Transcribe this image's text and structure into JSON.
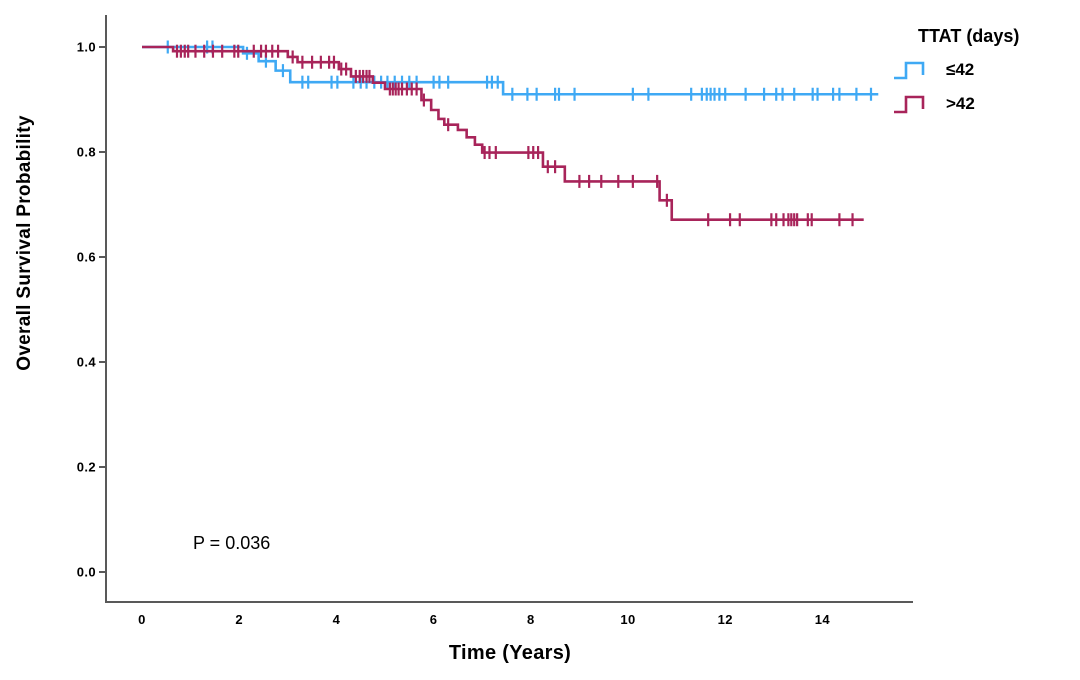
{
  "chart_data": {
    "type": "line",
    "subtype": "kaplan-meier-step",
    "title": "",
    "xlabel": "Time (Years)",
    "ylabel": "Overall Survival Probability",
    "annotation": "P = 0.036",
    "x_ticks": [
      "0",
      "2",
      "4",
      "6",
      "8",
      "10",
      "12",
      "14"
    ],
    "y_ticks": [
      "1.0",
      "0.8",
      "0.6",
      "0.4",
      "0.2",
      "0.0"
    ],
    "xlim": [
      -0.75,
      15.9
    ],
    "ylim": [
      -0.06,
      1.06
    ],
    "grid": false,
    "axis_color": "#595959",
    "text_color": "#000000",
    "legend": {
      "title": "TTAT (days)",
      "position": "top-right",
      "entries": [
        "≤42",
        ">42"
      ]
    },
    "series": [
      {
        "id": "ttat-le-42",
        "name": "≤42",
        "color": "#3FA9F4",
        "steps": [
          [
            0,
            1.0
          ],
          [
            2.08,
            1.0
          ],
          [
            2.08,
            0.988
          ],
          [
            2.4,
            0.988
          ],
          [
            2.4,
            0.973
          ],
          [
            2.75,
            0.973
          ],
          [
            2.75,
            0.955
          ],
          [
            3.05,
            0.955
          ],
          [
            3.05,
            0.933
          ],
          [
            7.43,
            0.933
          ],
          [
            7.43,
            0.91
          ],
          [
            15.15,
            0.91
          ]
        ],
        "censors": [
          0.53,
          1.34,
          1.45,
          2.16,
          2.55,
          2.9,
          3.3,
          3.42,
          3.9,
          4.02,
          4.35,
          4.5,
          4.62,
          4.78,
          4.92,
          5.05,
          5.2,
          5.35,
          5.5,
          5.65,
          6.0,
          6.12,
          6.3,
          7.1,
          7.2,
          7.32,
          7.62,
          7.93,
          8.12,
          8.5,
          8.58,
          8.9,
          10.1,
          10.42,
          11.3,
          11.52,
          11.62,
          11.7,
          11.78,
          11.88,
          12.0,
          12.42,
          12.8,
          13.05,
          13.18,
          13.42,
          13.8,
          13.9,
          14.22,
          14.35,
          14.7,
          15.0
        ]
      },
      {
        "id": "ttat-gt-42",
        "name": ">42",
        "color": "#A8245A",
        "steps": [
          [
            0,
            1.0
          ],
          [
            0.64,
            1.0
          ],
          [
            0.64,
            0.992
          ],
          [
            3.0,
            0.992
          ],
          [
            3.0,
            0.981
          ],
          [
            3.2,
            0.981
          ],
          [
            3.2,
            0.971
          ],
          [
            4.05,
            0.971
          ],
          [
            4.05,
            0.958
          ],
          [
            4.3,
            0.958
          ],
          [
            4.3,
            0.944
          ],
          [
            4.75,
            0.944
          ],
          [
            4.75,
            0.932
          ],
          [
            5.0,
            0.932
          ],
          [
            5.0,
            0.92
          ],
          [
            5.75,
            0.92
          ],
          [
            5.75,
            0.899
          ],
          [
            5.95,
            0.899
          ],
          [
            5.95,
            0.88
          ],
          [
            6.1,
            0.88
          ],
          [
            6.1,
            0.863
          ],
          [
            6.22,
            0.863
          ],
          [
            6.22,
            0.852
          ],
          [
            6.5,
            0.852
          ],
          [
            6.5,
            0.842
          ],
          [
            6.68,
            0.842
          ],
          [
            6.68,
            0.828
          ],
          [
            6.85,
            0.828
          ],
          [
            6.85,
            0.814
          ],
          [
            7.0,
            0.814
          ],
          [
            7.0,
            0.799
          ],
          [
            8.25,
            0.799
          ],
          [
            8.25,
            0.772
          ],
          [
            8.7,
            0.772
          ],
          [
            8.7,
            0.744
          ],
          [
            10.65,
            0.744
          ],
          [
            10.65,
            0.708
          ],
          [
            10.9,
            0.708
          ],
          [
            10.9,
            0.671
          ],
          [
            14.85,
            0.671
          ]
        ],
        "censors": [
          0.72,
          0.8,
          0.88,
          0.95,
          1.1,
          1.28,
          1.46,
          1.65,
          1.9,
          1.98,
          2.3,
          2.45,
          2.55,
          2.68,
          2.8,
          3.1,
          3.3,
          3.5,
          3.68,
          3.85,
          3.95,
          4.1,
          4.2,
          4.4,
          4.48,
          4.55,
          4.62,
          4.68,
          5.1,
          5.16,
          5.22,
          5.28,
          5.35,
          5.45,
          5.55,
          5.65,
          5.8,
          6.3,
          7.05,
          7.15,
          7.28,
          7.95,
          8.05,
          8.15,
          8.35,
          8.5,
          9.0,
          9.2,
          9.45,
          9.8,
          10.1,
          10.6,
          10.8,
          11.65,
          12.1,
          12.3,
          12.95,
          13.05,
          13.2,
          13.3,
          13.36,
          13.42,
          13.48,
          13.7,
          13.78,
          14.35,
          14.62
        ]
      }
    ]
  }
}
